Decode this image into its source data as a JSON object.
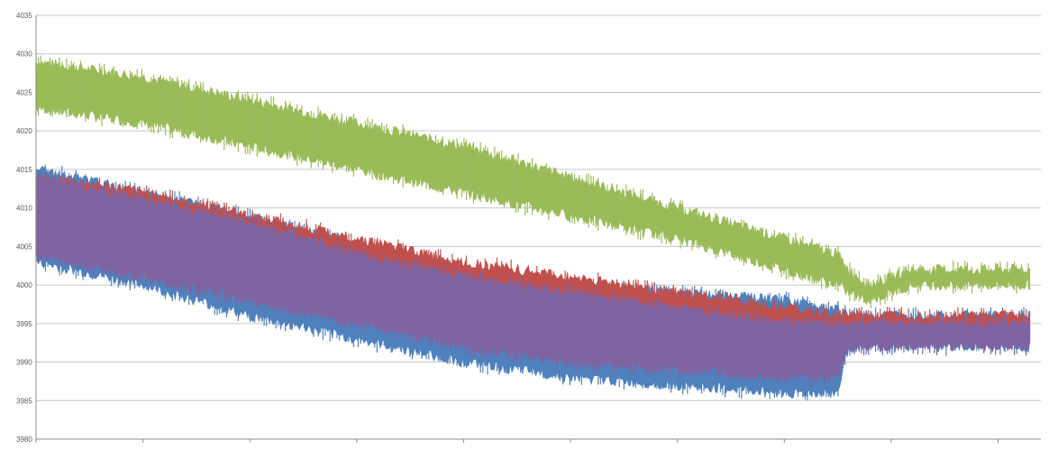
{
  "chart_data": {
    "type": "area",
    "title": "",
    "xlabel": "",
    "ylabel": "",
    "ylim": [
      3980,
      4035
    ],
    "xlim": [
      0,
      9400
    ],
    "grid": true,
    "legend": "none",
    "y_ticks": [
      "3980",
      "3985",
      "3990",
      "3995",
      "4000",
      "4005",
      "4010",
      "4015",
      "4020",
      "4025",
      "4030",
      "4035"
    ],
    "x_ticks": [
      0,
      1000,
      2000,
      3000,
      4000,
      5000,
      6000,
      7000,
      8000,
      9000
    ],
    "series": [
      {
        "color": "#9BBB59",
        "x": [
          0,
          1000,
          2000,
          3000,
          4000,
          5000,
          6000,
          7000,
          7500,
          7600,
          7800,
          8200,
          9300
        ],
        "low": [
          4023,
          4021,
          4018,
          4015,
          4012,
          4009,
          4006,
          4002,
          4000,
          3999,
          3998,
          4000,
          4000
        ],
        "high": [
          4029,
          4027,
          4024,
          4021,
          4018,
          4014,
          4010,
          4006,
          4004,
          4002,
          4000,
          4002,
          4002
        ]
      },
      {
        "color": "#4F81BD",
        "x": [
          0,
          1000,
          2000,
          3000,
          4000,
          5000,
          6000,
          7000,
          7500,
          7600,
          8200,
          9300
        ],
        "low": [
          4003,
          4000,
          3996,
          3993,
          3990,
          3988,
          3987,
          3986,
          3986,
          3992,
          3992,
          3992
        ],
        "high": [
          4015,
          4012,
          4009,
          4005,
          4002,
          4000,
          3999,
          3998,
          3997,
          3996,
          3996,
          3996
        ]
      },
      {
        "color": "#C0504D",
        "x": [
          0,
          1000,
          2000,
          3000,
          4000,
          5000,
          6000,
          7000,
          7500,
          7600,
          8200,
          9300
        ],
        "low": [
          4005,
          4002,
          3999,
          3996,
          3994,
          3992,
          3991,
          3991,
          3991,
          3993,
          3993,
          3993
        ],
        "high": [
          4014,
          4012,
          4009,
          4006,
          4003,
          4001,
          3999,
          3997,
          3996,
          3996,
          3996,
          3996
        ]
      },
      {
        "color": "#8064A2",
        "x": [
          0,
          1000,
          2000,
          3000,
          4000,
          5000,
          6000,
          7000,
          7500,
          7600,
          8200,
          9300
        ],
        "low": [
          4004,
          4001,
          3998,
          3995,
          3992,
          3990,
          3989,
          3988,
          3988,
          3992,
          3992,
          3992
        ],
        "high": [
          4014,
          4011,
          4008,
          4004,
          4001,
          3999,
          3997,
          3995,
          3995,
          3995,
          3995,
          3995
        ]
      }
    ]
  }
}
